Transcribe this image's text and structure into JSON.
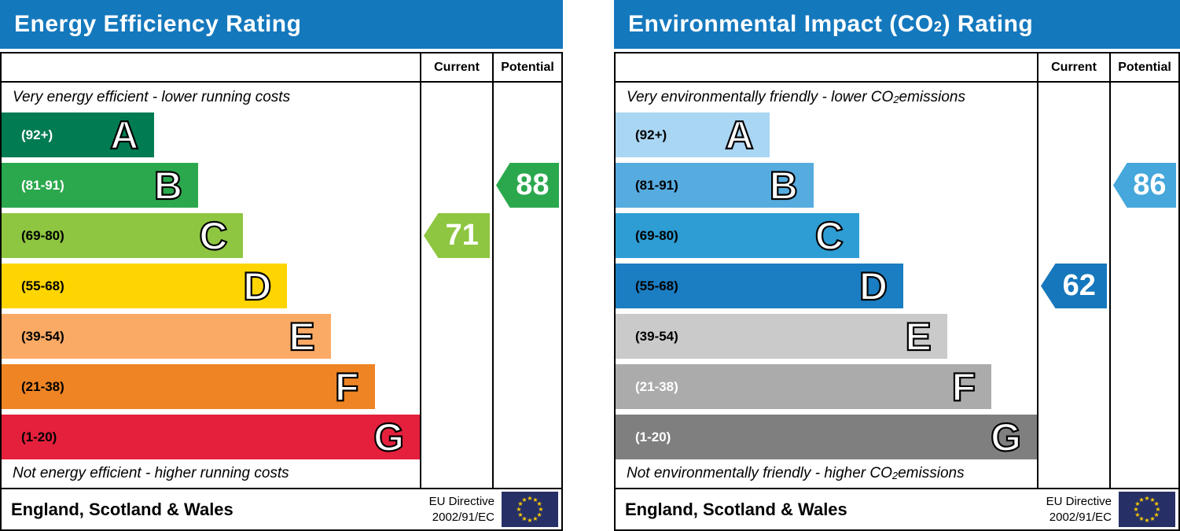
{
  "header_color": "#1478bd",
  "border_color": "#000000",
  "chart_data": [
    {
      "type": "bar",
      "chart_id": "energy-efficiency-rating",
      "title_pre": "Energy Efficiency Rating",
      "title_sub": "",
      "title_post": "",
      "columns": {
        "current": "Current",
        "potential": "Potential"
      },
      "caption_top": {
        "pre": "Very energy efficient - lower running costs",
        "sub": "",
        "post": ""
      },
      "caption_bottom": {
        "pre": "Not energy efficient - higher running costs",
        "sub": "",
        "post": ""
      },
      "bands": [
        {
          "letter": "A",
          "range": "(92+)",
          "color": "#007b52",
          "label_color": "#ffffff",
          "width_pct": 36.5
        },
        {
          "letter": "B",
          "range": "(81-91)",
          "color": "#2ba84d",
          "label_color": "#ffffff",
          "width_pct": 47.0
        },
        {
          "letter": "C",
          "range": "(69-80)",
          "color": "#8ec641",
          "label_color": "#000000",
          "width_pct": 57.8
        },
        {
          "letter": "D",
          "range": "(55-68)",
          "color": "#fed500",
          "label_color": "#000000",
          "width_pct": 68.3
        },
        {
          "letter": "E",
          "range": "(39-54)",
          "color": "#fbaa65",
          "label_color": "#000000",
          "width_pct": 78.7
        },
        {
          "letter": "F",
          "range": "(21-38)",
          "color": "#ee8424",
          "label_color": "#000000",
          "width_pct": 89.2
        },
        {
          "letter": "G",
          "range": "(1-20)",
          "color": "#e4203c",
          "label_color": "#000000",
          "width_pct": 100
        }
      ],
      "markers": [
        {
          "name": "current",
          "value": 71,
          "color": "#8ec641",
          "band_index": 2,
          "column": "current"
        },
        {
          "name": "potential",
          "value": 88,
          "color": "#2ba84d",
          "band_index": 1,
          "column": "potential"
        }
      ],
      "footer": {
        "region": "England, Scotland & Wales",
        "directive_line1": "EU Directive",
        "directive_line2": "2002/91/EC",
        "flag_icon": "eu-flag-icon",
        "flag_blue": "#263067",
        "star_color": "#ffcc00"
      }
    },
    {
      "type": "bar",
      "chart_id": "environmental-impact-co2-rating",
      "title_pre": "Environmental Impact (CO",
      "title_sub": "2",
      "title_post": ") Rating",
      "columns": {
        "current": "Current",
        "potential": "Potential"
      },
      "caption_top": {
        "pre": "Very environmentally friendly - lower CO",
        "sub": "2",
        "post": " emissions"
      },
      "caption_bottom": {
        "pre": "Not environmentally friendly - higher CO",
        "sub": "2",
        "post": " emissions"
      },
      "bands": [
        {
          "letter": "A",
          "range": "(92+)",
          "color": "#a9d6f2",
          "label_color": "#000000",
          "width_pct": 36.5
        },
        {
          "letter": "B",
          "range": "(81-91)",
          "color": "#56abdf",
          "label_color": "#000000",
          "width_pct": 47.0
        },
        {
          "letter": "C",
          "range": "(69-80)",
          "color": "#2d9dd4",
          "label_color": "#000000",
          "width_pct": 57.8
        },
        {
          "letter": "D",
          "range": "(55-68)",
          "color": "#1b7dc2",
          "label_color": "#000000",
          "width_pct": 68.3
        },
        {
          "letter": "E",
          "range": "(39-54)",
          "color": "#cacaca",
          "label_color": "#000000",
          "width_pct": 78.7
        },
        {
          "letter": "F",
          "range": "(21-38)",
          "color": "#ababab",
          "label_color": "#ffffff",
          "width_pct": 89.2
        },
        {
          "letter": "G",
          "range": "(1-20)",
          "color": "#7f7f7f",
          "label_color": "#ffffff",
          "width_pct": 100
        }
      ],
      "markers": [
        {
          "name": "current",
          "value": 62,
          "color": "#1677bd",
          "band_index": 3,
          "column": "current"
        },
        {
          "name": "potential",
          "value": 86,
          "color": "#45a7db",
          "band_index": 1,
          "column": "potential"
        }
      ],
      "footer": {
        "region": "England, Scotland & Wales",
        "directive_line1": "EU Directive",
        "directive_line2": "2002/91/EC",
        "flag_icon": "eu-flag-icon",
        "flag_blue": "#263067",
        "star_color": "#ffcc00"
      }
    }
  ]
}
